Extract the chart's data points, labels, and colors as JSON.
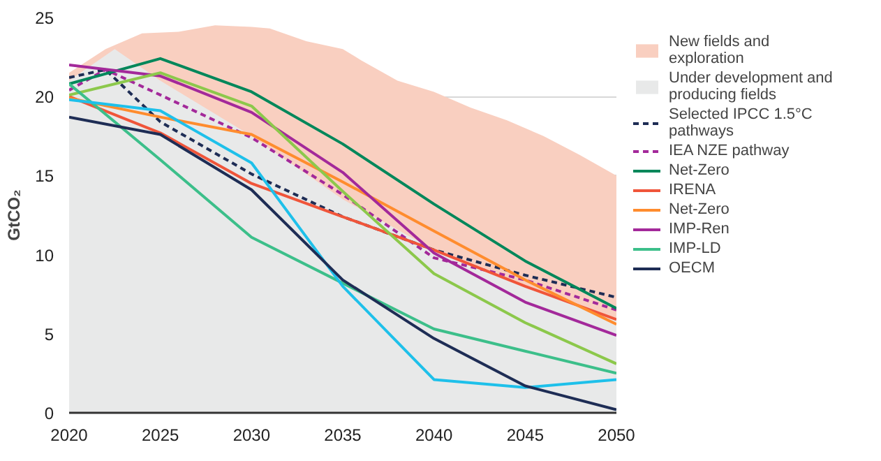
{
  "chart_data": {
    "type": "line",
    "ylabel": "GtCO₂",
    "xlim": [
      2020,
      2050
    ],
    "ylim": [
      0,
      25
    ],
    "xticks": [
      2020,
      2025,
      2030,
      2035,
      2040,
      2045,
      2050
    ],
    "yticks": [
      0,
      5,
      10,
      15,
      20,
      25
    ],
    "grid": "y",
    "legend": "right",
    "series": [
      {
        "name": "New fields and exploration",
        "type": "area",
        "color": "#f9cfc0",
        "x": [
          2020,
          2022,
          2024,
          2026,
          2028,
          2030,
          2031,
          2033,
          2035,
          2036,
          2038,
          2040,
          2042,
          2044,
          2046,
          2048,
          2050
        ],
        "values": [
          21.5,
          23,
          24,
          24.1,
          24.5,
          24.4,
          24.3,
          23.5,
          23,
          22.3,
          21,
          20.3,
          19.3,
          18.5,
          17.5,
          16.3,
          15
        ]
      },
      {
        "name": "Under development and producing fields",
        "type": "area",
        "color": "#e8e9e9",
        "x": [
          2020,
          2022.5,
          2025,
          2030,
          2035,
          2040,
          2045,
          2050
        ],
        "values": [
          21,
          23,
          21,
          17.5,
          13.5,
          10.3,
          8,
          6
        ]
      },
      {
        "name": "Selected IPCC 1.5°C pathways",
        "color": "#1e2d55",
        "line_style": "dashed",
        "x": [
          2020,
          2022,
          2025,
          2030,
          2035,
          2040,
          2045,
          2050
        ],
        "values": [
          21.2,
          21.7,
          18.4,
          15.1,
          12.4,
          10.3,
          8.7,
          7.3
        ]
      },
      {
        "name": "IEA NZE pathway",
        "color": "#a3299a",
        "line_style": "dashed",
        "x": [
          2020,
          2022,
          2025,
          2030,
          2035,
          2040,
          2045,
          2050
        ],
        "values": [
          20.4,
          21.7,
          20.1,
          17.4,
          13.8,
          9.8,
          8.4,
          6.5
        ]
      },
      {
        "name": "Net-Zero",
        "color": "#00875a",
        "x": [
          2020,
          2025,
          2030,
          2035,
          2040,
          2045,
          2050
        ],
        "values": [
          20.8,
          22.4,
          20.3,
          17.0,
          13.2,
          9.6,
          6.6
        ]
      },
      {
        "name": "IRENA",
        "color": "#f0553a",
        "x": [
          2020,
          2025,
          2030,
          2035,
          2040,
          2045,
          2050
        ],
        "values": [
          20.0,
          17.7,
          14.5,
          12.4,
          10.3,
          8.0,
          5.9
        ]
      },
      {
        "name": "Net-Zero",
        "color": "#ff8c2e",
        "x": [
          2020,
          2025,
          2030,
          2035,
          2040,
          2045,
          2050
        ],
        "values": [
          19.9,
          18.7,
          17.6,
          14.6,
          11.5,
          8.4,
          5.6
        ]
      },
      {
        "name": "IMP-Ren",
        "color": "#a3299a",
        "x": [
          2020,
          2025,
          2030,
          2035,
          2040,
          2045,
          2050
        ],
        "values": [
          22.0,
          21.3,
          19.0,
          15.2,
          10.1,
          7.0,
          4.9
        ]
      },
      {
        "color": "#8cc84b",
        "x": [
          2020,
          2025,
          2030,
          2035,
          2040,
          2045,
          2050
        ],
        "values": [
          20.1,
          21.5,
          19.4,
          14.0,
          8.8,
          5.7,
          3.1
        ]
      },
      {
        "name": "IMP-LD",
        "color": "#3cbf8a",
        "x": [
          2020,
          2025,
          2030,
          2035,
          2040,
          2045,
          2050
        ],
        "values": [
          20.8,
          16.0,
          11.1,
          8.2,
          5.3,
          3.9,
          2.5
        ]
      },
      {
        "color": "#1ec0ea",
        "x": [
          2020,
          2025,
          2030,
          2035,
          2040,
          2045,
          2050
        ],
        "values": [
          19.8,
          19.1,
          15.8,
          8.0,
          2.1,
          1.6,
          2.1
        ]
      },
      {
        "name": "OECM",
        "color": "#1e2d55",
        "x": [
          2020,
          2025,
          2030,
          2035,
          2040,
          2045,
          2050
        ],
        "values": [
          18.7,
          17.6,
          14.1,
          8.4,
          4.7,
          1.7,
          0.2
        ]
      }
    ]
  }
}
